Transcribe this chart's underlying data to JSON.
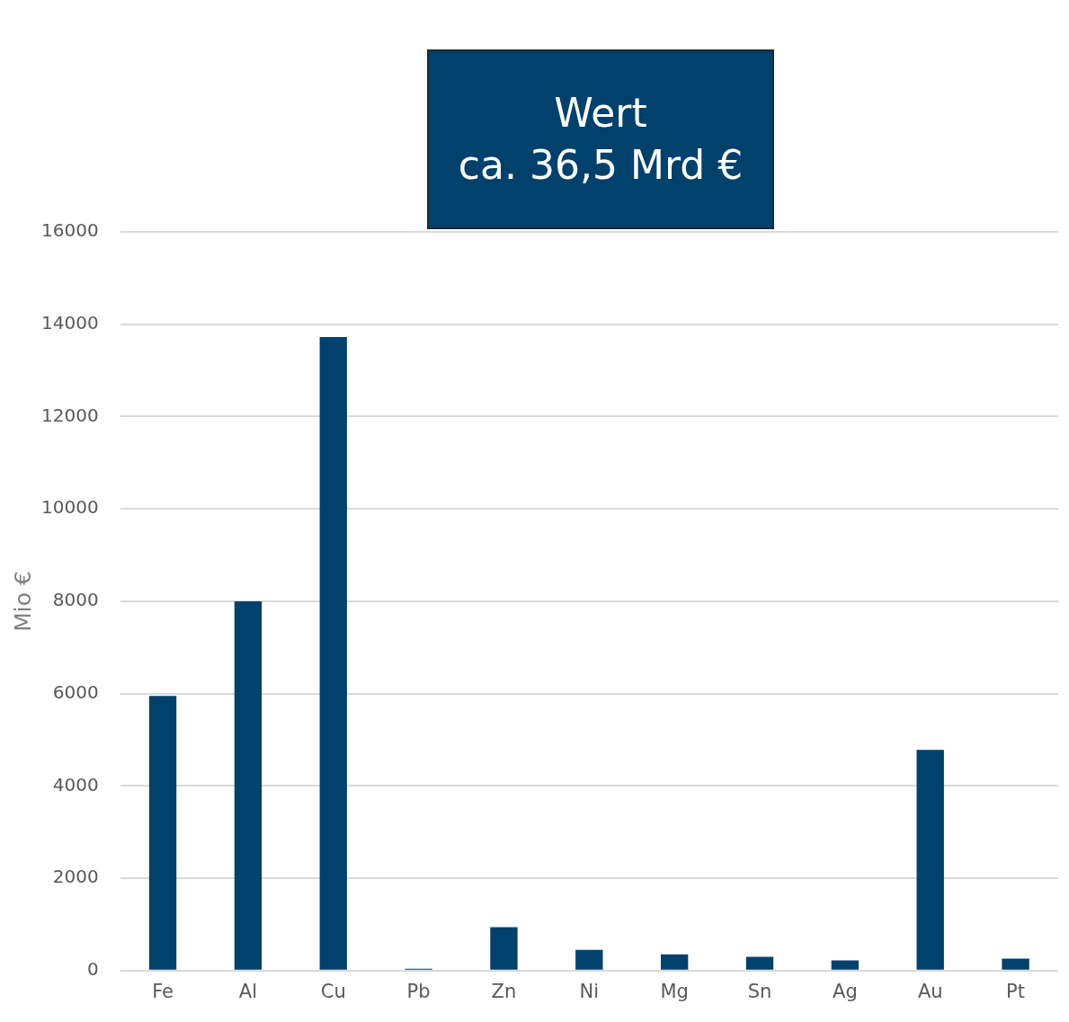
{
  "chart_data": {
    "type": "bar",
    "title": "Wert\nca. 36,5 Mrd €",
    "ylabel": "Mio €",
    "categories": [
      "Fe",
      "Al",
      "Cu",
      "Pb",
      "Zn",
      "Ni",
      "Mg",
      "Sn",
      "Ag",
      "Au",
      "Pt"
    ],
    "values": [
      5950,
      8000,
      13720,
      40,
      940,
      450,
      350,
      300,
      220,
      4780,
      260
    ],
    "color": "#02416b",
    "ylim": [
      0,
      16000
    ],
    "yticks": [
      0,
      2000,
      4000,
      6000,
      8000,
      10000,
      12000,
      14000,
      16000
    ],
    "grid": "y",
    "legend": false
  }
}
